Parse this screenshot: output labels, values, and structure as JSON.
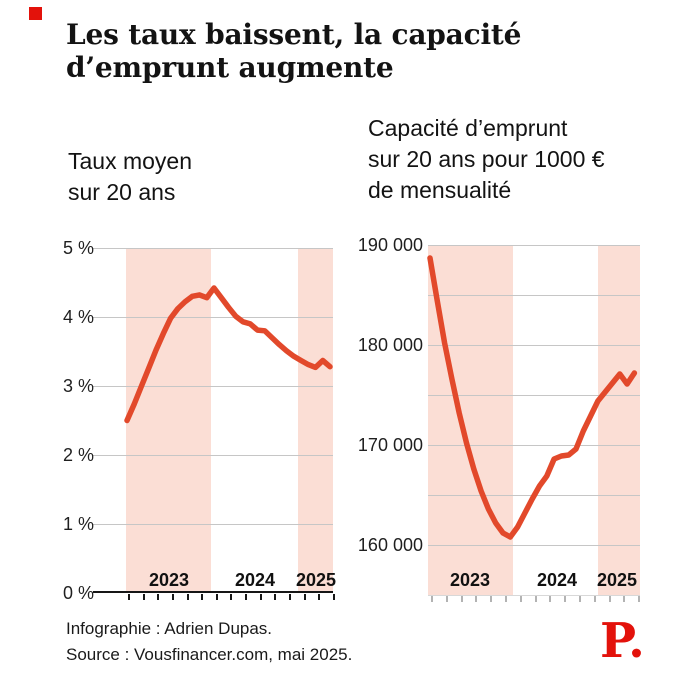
{
  "header": {
    "title_line1": "Les taux baissent, la capacité",
    "title_line2": "d’emprunt augmente"
  },
  "brand": {
    "square_color": "#e3120b",
    "logo_text": "P.",
    "logo_color": "#e3120b"
  },
  "footer": {
    "credit": "Infographie : Adrien Dupas.",
    "source": "Source : Vousfinancer.com, mai 2025."
  },
  "colors": {
    "line": "#e2492b",
    "band": "#fbded5",
    "grid": "#c6c6c6",
    "axis_black": "#161616",
    "tick_gray": "#b3b3b3",
    "text": "#1a1a1a"
  },
  "chart_data": [
    {
      "type": "line",
      "title_lines": [
        "Taux moyen",
        "sur 20 ans"
      ],
      "ylabel": "%",
      "ylim": [
        0,
        5
      ],
      "ytick_labels": [
        "0 %",
        "1 %",
        "2 %",
        "3 %",
        "4 %",
        "5 %"
      ],
      "grid": "horizontal, 1 % steps",
      "year_labels": [
        "2023",
        "2024",
        "2025"
      ],
      "highlight_years": [
        "2023",
        "2025"
      ],
      "x_months": [
        "2023-01",
        "2023-02",
        "2023-03",
        "2023-04",
        "2023-05",
        "2023-06",
        "2023-07",
        "2023-08",
        "2023-09",
        "2023-10",
        "2023-11",
        "2023-12",
        "2024-01",
        "2024-02",
        "2024-03",
        "2024-04",
        "2024-05",
        "2024-06",
        "2024-07",
        "2024-08",
        "2024-09",
        "2024-10",
        "2024-11",
        "2024-12",
        "2025-01",
        "2025-02",
        "2025-03",
        "2025-04",
        "2025-05"
      ],
      "values": [
        2.5,
        2.74,
        3.0,
        3.26,
        3.52,
        3.76,
        3.98,
        4.12,
        4.22,
        4.3,
        4.32,
        4.28,
        4.42,
        4.28,
        4.14,
        4.01,
        3.93,
        3.9,
        3.81,
        3.8,
        3.7,
        3.6,
        3.51,
        3.43,
        3.37,
        3.31,
        3.27,
        3.37,
        3.28
      ]
    },
    {
      "type": "line",
      "title_lines": [
        "Capacité d’emprunt",
        "sur 20 ans pour 1000 €",
        "de mensualité"
      ],
      "ylabel": "€",
      "ylim": [
        155000,
        190000
      ],
      "ytick_labels": [
        "160 000",
        "170 000",
        "180 000",
        "190 000"
      ],
      "grid": "horizontal, 5 000 steps (labels every 10 000)",
      "year_labels": [
        "2023",
        "2024",
        "2025"
      ],
      "highlight_years": [
        "2023",
        "2025"
      ],
      "x_months": [
        "2023-01",
        "2023-02",
        "2023-03",
        "2023-04",
        "2023-05",
        "2023-06",
        "2023-07",
        "2023-08",
        "2023-09",
        "2023-10",
        "2023-11",
        "2023-12",
        "2024-01",
        "2024-02",
        "2024-03",
        "2024-04",
        "2024-05",
        "2024-06",
        "2024-07",
        "2024-08",
        "2024-09",
        "2024-10",
        "2024-11",
        "2024-12",
        "2025-01",
        "2025-02",
        "2025-03",
        "2025-04",
        "2025-05"
      ],
      "values": [
        188700,
        184400,
        180200,
        176600,
        173200,
        170200,
        167600,
        165400,
        163600,
        162200,
        161200,
        160800,
        161800,
        163200,
        164600,
        165900,
        166900,
        168600,
        168900,
        169000,
        169600,
        171400,
        172900,
        174400,
        175300,
        176200,
        177100,
        176100,
        177200
      ]
    }
  ]
}
